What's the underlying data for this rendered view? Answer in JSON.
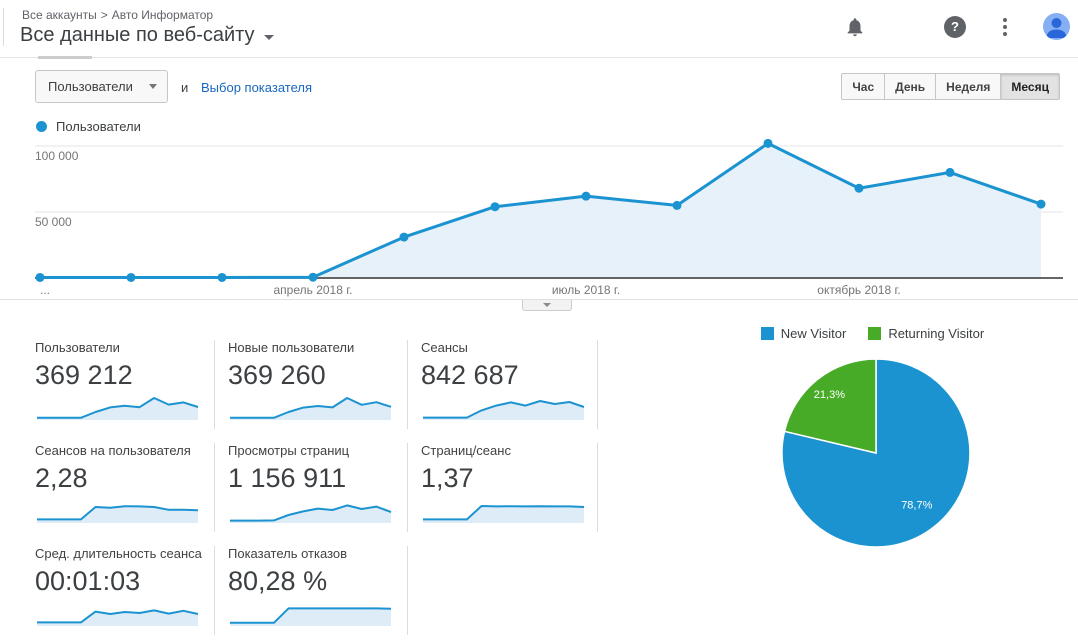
{
  "header": {
    "breadcrumb": {
      "root": "Все аккаунты",
      "separator": ">",
      "account": "Авто Информатор"
    },
    "title": "Все данные по веб-сайту",
    "icons": [
      "notifications-bell-icon",
      "apps-grid-icon",
      "help-icon",
      "kebab-menu-icon",
      "user-avatar"
    ]
  },
  "toolbar": {
    "metric_selector": "Пользователи",
    "conjunction": "и",
    "add_metric_link": "Выбор показателя",
    "granularity": [
      {
        "label": "Час",
        "selected": false
      },
      {
        "label": "День",
        "selected": false
      },
      {
        "label": "Неделя",
        "selected": false
      },
      {
        "label": "Месяц",
        "selected": true
      }
    ]
  },
  "chart_data": [
    {
      "type": "area",
      "legend_label": "Пользователи",
      "x_ticks": [
        {
          "index": 0,
          "label": "..."
        },
        {
          "index": 3,
          "label": "апрель 2018 г."
        },
        {
          "index": 6,
          "label": "июль 2018 г."
        },
        {
          "index": 9,
          "label": "октябрь 2018 г."
        }
      ],
      "values": [
        400,
        400,
        400,
        600,
        31000,
        54000,
        62000,
        55000,
        102000,
        68000,
        80000,
        56000
      ],
      "y_ticks": [
        {
          "value": 50000,
          "label": "50 000"
        },
        {
          "value": 100000,
          "label": "100 000"
        }
      ],
      "ylim": [
        0,
        110000
      ],
      "line_color": "#1c93d1",
      "area_color": "#e7f1f9"
    },
    {
      "type": "pie",
      "slices": [
        {
          "name": "New Visitor",
          "value": 78.7,
          "display_label": "78,7%",
          "color": "#1c93d1",
          "label_radius": 0.7
        },
        {
          "name": "Returning Visitor",
          "value": 21.3,
          "display_label": "21,3%",
          "color": "#47ab27",
          "label_radius": 0.8
        }
      ],
      "legend_position": "top"
    }
  ],
  "scorecards": {
    "spark_color": "#1c93d1",
    "spark_fill": "#ddecf7",
    "cards": [
      {
        "label": "Пользователи",
        "value": "369 212",
        "spark": [
          0.01,
          0.01,
          0.01,
          0.01,
          0.3,
          0.53,
          0.61,
          0.54,
          1.0,
          0.67,
          0.78,
          0.55
        ]
      },
      {
        "label": "Новые пользователи",
        "value": "369 260",
        "spark": [
          0.01,
          0.01,
          0.01,
          0.01,
          0.3,
          0.52,
          0.6,
          0.53,
          1.0,
          0.66,
          0.79,
          0.56
        ]
      },
      {
        "label": "Сеансы",
        "value": "842 687",
        "spark": [
          0.02,
          0.02,
          0.02,
          0.02,
          0.38,
          0.62,
          0.78,
          0.62,
          0.85,
          0.7,
          0.8,
          0.55
        ]
      },
      {
        "label": "Сеансов на пользователя",
        "value": "2,28",
        "spark": [
          0.08,
          0.08,
          0.08,
          0.08,
          0.7,
          0.66,
          0.74,
          0.73,
          0.7,
          0.56,
          0.56,
          0.54
        ]
      },
      {
        "label": "Просмотры страниц",
        "value": "1 156 911",
        "spark": [
          0.02,
          0.02,
          0.02,
          0.03,
          0.3,
          0.48,
          0.62,
          0.55,
          0.78,
          0.6,
          0.72,
          0.45
        ]
      },
      {
        "label": "Страниц/сеанс",
        "value": "1,37",
        "spark": [
          0.08,
          0.08,
          0.08,
          0.08,
          0.75,
          0.73,
          0.74,
          0.73,
          0.74,
          0.73,
          0.73,
          0.7
        ]
      },
      {
        "label": "Сред. длительность сеанса",
        "value": "00:01:03",
        "spark": [
          0.08,
          0.08,
          0.08,
          0.08,
          0.62,
          0.5,
          0.6,
          0.55,
          0.68,
          0.52,
          0.66,
          0.5
        ]
      },
      {
        "label": "Показатель отказов",
        "value": "80,28 %",
        "spark": [
          0.06,
          0.06,
          0.06,
          0.06,
          0.78,
          0.78,
          0.78,
          0.78,
          0.78,
          0.78,
          0.78,
          0.76
        ]
      }
    ]
  }
}
